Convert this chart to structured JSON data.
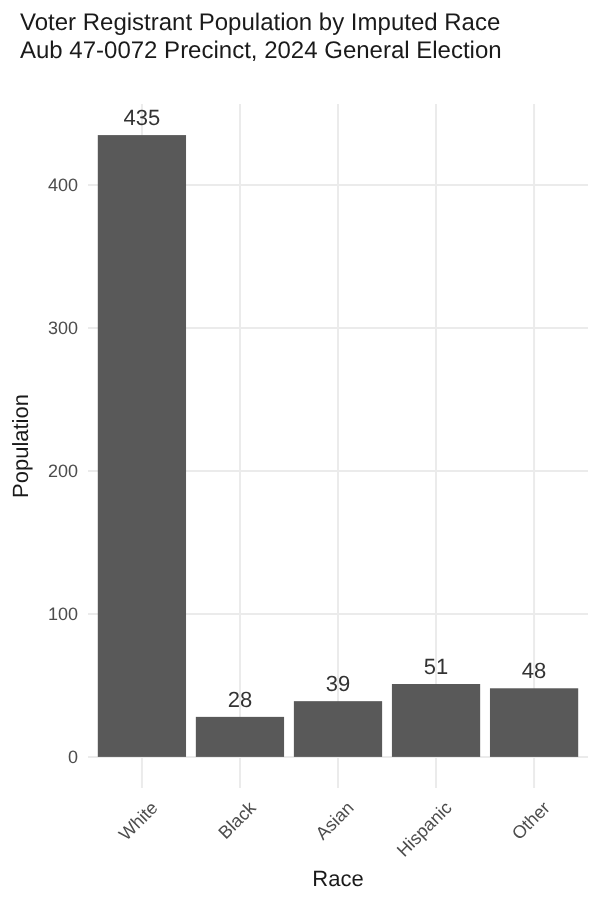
{
  "chart_data": {
    "type": "bar",
    "title": "Voter Registrant Population by Imputed Race",
    "subtitle": "Aub 47-0072 Precinct,  2024 General Election",
    "xlabel": "Race",
    "ylabel": "Population",
    "categories": [
      "White",
      "Black",
      "Asian",
      "Hispanic",
      "Other"
    ],
    "values": [
      435,
      28,
      39,
      51,
      48
    ],
    "color": "#595959",
    "ylim": [
      -21.75,
      456.75
    ],
    "yticks": [
      0,
      100,
      200,
      300,
      400
    ],
    "grid": true,
    "data_labels": true
  }
}
